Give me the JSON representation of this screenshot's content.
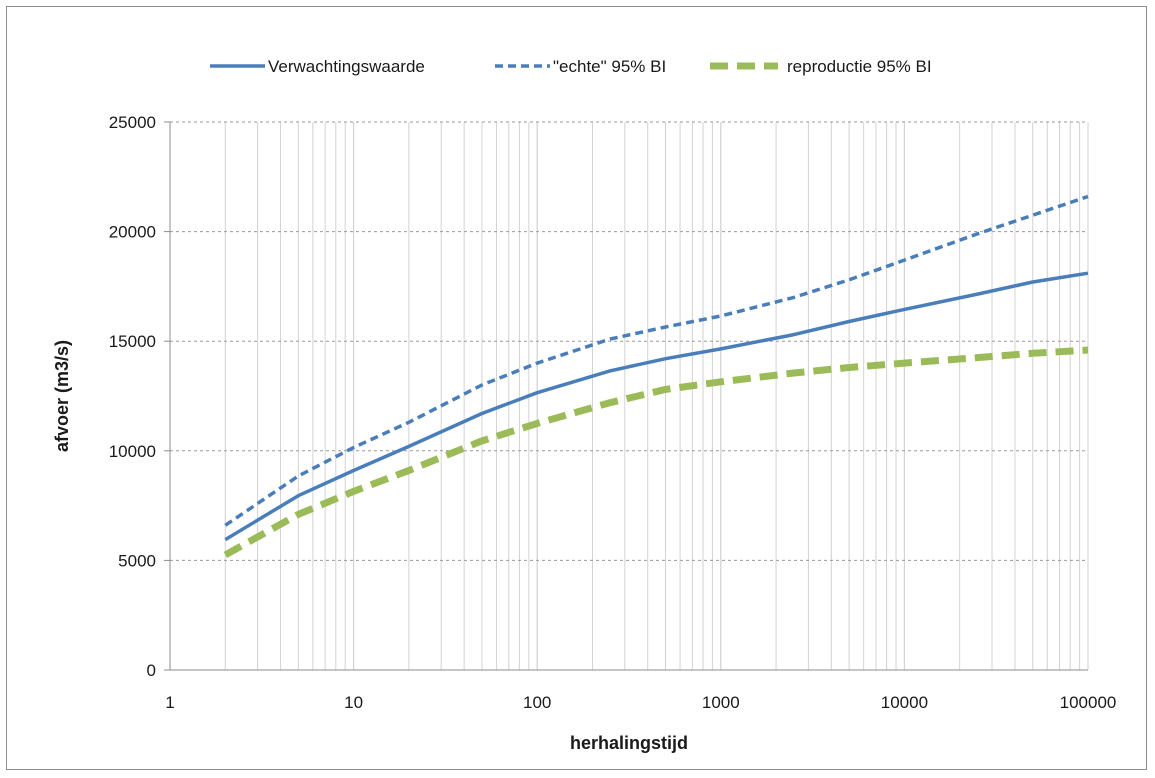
{
  "chart_data": {
    "type": "line",
    "title": "",
    "xlabel": "herhalingstijd",
    "ylabel": "afvoer (m3/s)",
    "xscale": "log",
    "xlim": [
      1,
      100000
    ],
    "ylim": [
      0,
      25000
    ],
    "xticks": [
      "1",
      "10",
      "100",
      "1000",
      "10000",
      "100000"
    ],
    "yticks": [
      "0",
      "5000",
      "10000",
      "15000",
      "20000",
      "25000"
    ],
    "grid": "on",
    "legend_position": "top",
    "series": [
      {
        "name": "Verwachtingswaarde",
        "style": "solid",
        "color": "#4a7ebb",
        "x": [
          2,
          5,
          10,
          20,
          50,
          100,
          250,
          500,
          1000,
          2500,
          5000,
          10000,
          25000,
          50000,
          100000
        ],
        "y": [
          5950,
          7950,
          9100,
          10200,
          11700,
          12650,
          13650,
          14200,
          14650,
          15300,
          15900,
          16450,
          17150,
          17700,
          18100
        ]
      },
      {
        "name": "\"echte\" 95% BI",
        "style": "dash",
        "color": "#4a7ebb",
        "x": [
          2,
          5,
          10,
          20,
          50,
          100,
          250,
          500,
          1000,
          2500,
          5000,
          10000,
          25000,
          50000,
          100000
        ],
        "y": [
          6600,
          8850,
          10150,
          11300,
          13000,
          14000,
          15100,
          15650,
          16150,
          17000,
          17800,
          18700,
          19900,
          20750,
          21600
        ]
      },
      {
        "name": "reproductie 95% BI",
        "style": "dash",
        "color": "#9bbb59",
        "x": [
          2,
          5,
          10,
          20,
          50,
          100,
          250,
          500,
          1000,
          2500,
          5000,
          10000,
          25000,
          50000,
          100000
        ],
        "y": [
          5250,
          7100,
          8150,
          9100,
          10450,
          11250,
          12200,
          12800,
          13150,
          13550,
          13800,
          14000,
          14250,
          14450,
          14600
        ]
      }
    ]
  }
}
